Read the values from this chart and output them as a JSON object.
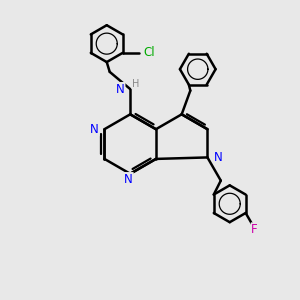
{
  "background_color": "#e8e8e8",
  "bond_color": "#000000",
  "n_color": "#0000ff",
  "cl_color": "#00aa00",
  "f_color": "#cc00aa",
  "h_color": "#888888",
  "bond_width": 1.8,
  "figsize": [
    3.0,
    3.0
  ],
  "dpi": 100,
  "xlim": [
    0,
    10
  ],
  "ylim": [
    0,
    10
  ]
}
